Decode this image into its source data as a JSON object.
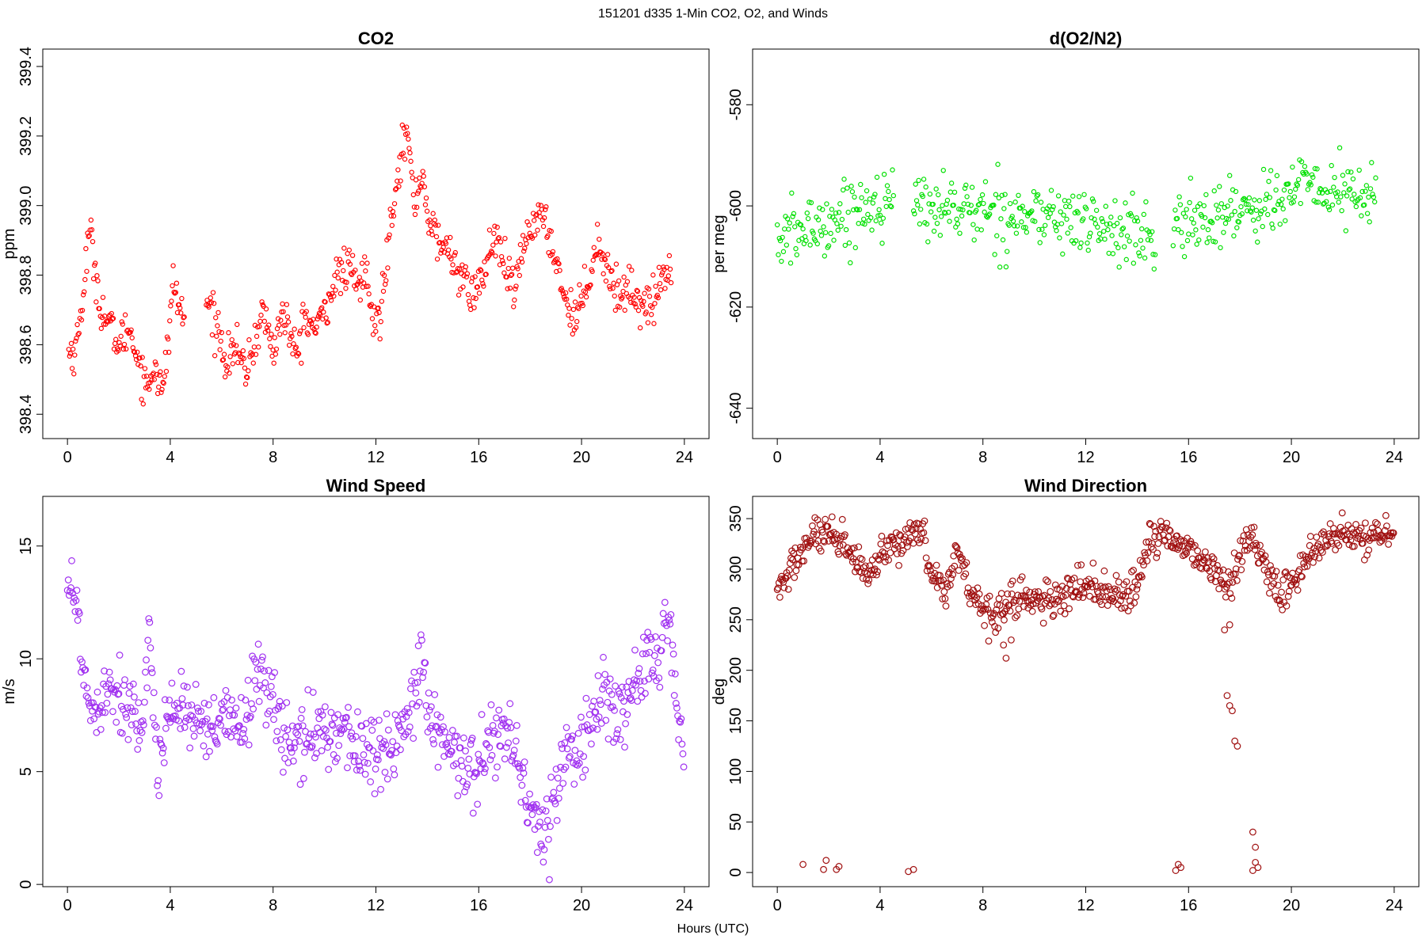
{
  "figure": {
    "title": "151201   d335   1-Min CO2, O2, and Winds",
    "xlabel": "Hours (UTC)"
  },
  "chart_data": [
    {
      "type": "scatter",
      "title": "CO2",
      "ylabel": "ppm",
      "xlim": [
        -0.96,
        24.96
      ],
      "ylim": [
        398.33,
        399.45
      ],
      "xticks": [
        0,
        4,
        8,
        12,
        16,
        20,
        24
      ],
      "yticks": [
        398.4,
        398.6,
        398.8,
        399.0,
        399.2,
        399.4
      ],
      "ytick_labels": [
        "398.4",
        "398.6",
        "398.8",
        "399.0",
        "399.2",
        "399.4"
      ],
      "color": "#ff0000",
      "marker_radius": 2.6,
      "x_step_hours": 0.0333,
      "x_ranges": [
        [
          0.05,
          4.55
        ],
        [
          5.4,
          23.5
        ]
      ],
      "keypoints": [
        [
          0.0,
          398.58
        ],
        [
          0.3,
          398.58
        ],
        [
          0.5,
          398.67
        ],
        [
          0.85,
          398.93
        ],
        [
          1.0,
          398.86
        ],
        [
          1.3,
          398.7
        ],
        [
          1.6,
          398.66
        ],
        [
          2.0,
          398.6
        ],
        [
          2.4,
          398.65
        ],
        [
          2.8,
          398.55
        ],
        [
          3.1,
          398.47
        ],
        [
          3.4,
          398.55
        ],
        [
          3.7,
          398.45
        ],
        [
          3.9,
          398.6
        ],
        [
          4.1,
          398.78
        ],
        [
          4.5,
          398.67
        ],
        [
          5.5,
          398.72
        ],
        [
          5.8,
          398.66
        ],
        [
          6.2,
          398.55
        ],
        [
          6.5,
          398.6
        ],
        [
          6.9,
          398.52
        ],
        [
          7.2,
          398.58
        ],
        [
          7.6,
          398.7
        ],
        [
          8.0,
          398.58
        ],
        [
          8.4,
          398.7
        ],
        [
          8.9,
          398.56
        ],
        [
          9.2,
          398.68
        ],
        [
          9.7,
          398.64
        ],
        [
          10.0,
          398.7
        ],
        [
          10.5,
          398.8
        ],
        [
          11.0,
          398.82
        ],
        [
          11.3,
          398.76
        ],
        [
          11.6,
          398.82
        ],
        [
          11.9,
          398.65
        ],
        [
          12.2,
          398.7
        ],
        [
          12.6,
          398.98
        ],
        [
          12.9,
          399.12
        ],
        [
          13.2,
          399.22
        ],
        [
          13.5,
          399.0
        ],
        [
          13.8,
          399.1
        ],
        [
          14.1,
          398.94
        ],
        [
          14.4,
          398.9
        ],
        [
          14.9,
          398.86
        ],
        [
          15.3,
          398.8
        ],
        [
          15.7,
          398.74
        ],
        [
          16.2,
          398.8
        ],
        [
          16.6,
          398.92
        ],
        [
          17.0,
          398.82
        ],
        [
          17.4,
          398.75
        ],
        [
          17.8,
          398.9
        ],
        [
          18.3,
          398.98
        ],
        [
          18.7,
          398.92
        ],
        [
          19.0,
          398.85
        ],
        [
          19.4,
          398.72
        ],
        [
          19.8,
          398.68
        ],
        [
          20.3,
          398.8
        ],
        [
          20.6,
          398.9
        ],
        [
          21.0,
          398.82
        ],
        [
          21.4,
          398.74
        ],
        [
          21.8,
          398.77
        ],
        [
          22.3,
          398.72
        ],
        [
          22.8,
          398.71
        ],
        [
          23.1,
          398.8
        ],
        [
          23.5,
          398.82
        ]
      ],
      "noise": 0.05
    },
    {
      "type": "scatter",
      "title": "d(O2/N2)",
      "ylabel": "per meg",
      "xlim": [
        -0.96,
        24.96
      ],
      "ylim": [
        -646,
        -569
      ],
      "xticks": [
        0,
        4,
        8,
        12,
        16,
        20,
        24
      ],
      "yticks": [
        -640,
        -620,
        -600,
        -580
      ],
      "ytick_labels": [
        "-640",
        "-620",
        "-600",
        "-580"
      ],
      "color": "#00e000",
      "marker_radius": 2.6,
      "x_step_hours": 0.04,
      "x_ranges": [
        [
          0.0,
          4.55
        ],
        [
          5.3,
          14.7
        ],
        [
          15.4,
          23.3
        ]
      ],
      "keypoints": [
        [
          0.0,
          -607
        ],
        [
          1.0,
          -605
        ],
        [
          2.0,
          -603
        ],
        [
          3.0,
          -601
        ],
        [
          4.0,
          -599
        ],
        [
          5.5,
          -600
        ],
        [
          6.5,
          -600
        ],
        [
          7.5,
          -601
        ],
        [
          8.5,
          -601
        ],
        [
          9.5,
          -602
        ],
        [
          10.5,
          -602
        ],
        [
          11.5,
          -603
        ],
        [
          12.5,
          -604
        ],
        [
          13.5,
          -605
        ],
        [
          14.5,
          -607
        ],
        [
          15.5,
          -604
        ],
        [
          16.5,
          -603
        ],
        [
          17.5,
          -601
        ],
        [
          18.5,
          -600
        ],
        [
          19.5,
          -599
        ],
        [
          20.5,
          -596
        ],
        [
          21.5,
          -597
        ],
        [
          22.5,
          -598
        ],
        [
          23.3,
          -598
        ]
      ],
      "noise": 5.5
    },
    {
      "type": "scatter",
      "title": "Wind Speed",
      "ylabel": "m/s",
      "xlim": [
        -0.96,
        24.96
      ],
      "ylim": [
        -0.1,
        17.2
      ],
      "xticks": [
        0,
        4,
        8,
        12,
        16,
        20,
        24
      ],
      "yticks": [
        0,
        5,
        10,
        15
      ],
      "ytick_labels": [
        "0",
        "5",
        "10",
        "15"
      ],
      "color": "#a030f0",
      "marker_radius": 3.8,
      "x_step_hours": 0.0333,
      "x_ranges": [
        [
          0.0,
          24.0
        ]
      ],
      "keypoints": [
        [
          0.0,
          14.0
        ],
        [
          0.3,
          12.5
        ],
        [
          0.7,
          9.0
        ],
        [
          1.0,
          7.5
        ],
        [
          1.5,
          9.0
        ],
        [
          2.0,
          8.5
        ],
        [
          2.5,
          7.8
        ],
        [
          3.0,
          6.5
        ],
        [
          3.2,
          11.5
        ],
        [
          3.5,
          5.5
        ],
        [
          4.0,
          7.8
        ],
        [
          4.5,
          8.0
        ],
        [
          5.0,
          7.0
        ],
        [
          5.5,
          6.5
        ],
        [
          6.0,
          7.2
        ],
        [
          6.5,
          7.0
        ],
        [
          7.0,
          7.5
        ],
        [
          7.5,
          9.5
        ],
        [
          8.0,
          8.5
        ],
        [
          8.3,
          6.5
        ],
        [
          9.0,
          6.2
        ],
        [
          9.5,
          6.5
        ],
        [
          10.0,
          7.0
        ],
        [
          10.5,
          6.8
        ],
        [
          11.0,
          6.5
        ],
        [
          11.5,
          6.0
        ],
        [
          12.0,
          5.5
        ],
        [
          12.5,
          6.0
        ],
        [
          13.0,
          6.8
        ],
        [
          13.5,
          7.8
        ],
        [
          13.8,
          10.5
        ],
        [
          14.0,
          7.5
        ],
        [
          14.5,
          6.5
        ],
        [
          15.0,
          5.5
        ],
        [
          15.5,
          5.2
        ],
        [
          16.0,
          5.5
        ],
        [
          16.5,
          6.5
        ],
        [
          17.0,
          7.0
        ],
        [
          17.5,
          5.5
        ],
        [
          18.0,
          3.5
        ],
        [
          18.5,
          2.0
        ],
        [
          19.0,
          4.0
        ],
        [
          19.5,
          6.5
        ],
        [
          20.0,
          6.0
        ],
        [
          20.5,
          7.5
        ],
        [
          21.0,
          8.5
        ],
        [
          21.5,
          7.5
        ],
        [
          22.0,
          8.5
        ],
        [
          22.5,
          9.8
        ],
        [
          23.0,
          9.5
        ],
        [
          23.3,
          12.5
        ],
        [
          23.6,
          9.0
        ],
        [
          24.0,
          5.0
        ]
      ],
      "noise": 1.4
    },
    {
      "type": "scatter",
      "title": "Wind Direction",
      "ylabel": "deg",
      "xlim": [
        -0.96,
        24.96
      ],
      "ylim": [
        -14,
        372
      ],
      "xticks": [
        0,
        4,
        8,
        12,
        16,
        20,
        24
      ],
      "yticks": [
        0,
        50,
        100,
        150,
        200,
        250,
        300,
        350
      ],
      "ytick_labels": [
        "0",
        "50",
        "100",
        "150",
        "200",
        "250",
        "300",
        "350"
      ],
      "color": "#a01010",
      "marker_radius": 3.8,
      "x_step_hours": 0.0333,
      "x_ranges": [
        [
          0.0,
          24.0
        ]
      ],
      "keypoints": [
        [
          0.0,
          275
        ],
        [
          0.5,
          300
        ],
        [
          1.0,
          320
        ],
        [
          1.5,
          335
        ],
        [
          2.0,
          330
        ],
        [
          2.5,
          325
        ],
        [
          3.0,
          310
        ],
        [
          3.5,
          290
        ],
        [
          4.0,
          310
        ],
        [
          4.5,
          320
        ],
        [
          5.0,
          330
        ],
        [
          5.5,
          345
        ],
        [
          6.0,
          300
        ],
        [
          6.5,
          275
        ],
        [
          7.0,
          320
        ],
        [
          7.5,
          280
        ],
        [
          8.0,
          260
        ],
        [
          8.5,
          258
        ],
        [
          9.0,
          265
        ],
        [
          9.5,
          275
        ],
        [
          10.0,
          270
        ],
        [
          10.5,
          265
        ],
        [
          11.0,
          270
        ],
        [
          11.5,
          280
        ],
        [
          12.0,
          285
        ],
        [
          12.5,
          282
        ],
        [
          13.0,
          275
        ],
        [
          13.5,
          270
        ],
        [
          14.0,
          280
        ],
        [
          14.5,
          330
        ],
        [
          15.0,
          335
        ],
        [
          15.5,
          330
        ],
        [
          16.0,
          320
        ],
        [
          16.5,
          310
        ],
        [
          17.0,
          300
        ],
        [
          17.5,
          280
        ],
        [
          18.0,
          310
        ],
        [
          18.5,
          340
        ],
        [
          19.0,
          300
        ],
        [
          19.5,
          275
        ],
        [
          20.0,
          285
        ],
        [
          20.5,
          305
        ],
        [
          21.0,
          320
        ],
        [
          21.5,
          330
        ],
        [
          22.0,
          335
        ],
        [
          22.5,
          330
        ],
        [
          23.0,
          332
        ],
        [
          23.5,
          335
        ],
        [
          24.0,
          330
        ]
      ],
      "noise": 15,
      "outliers": [
        [
          1.0,
          8
        ],
        [
          1.8,
          3
        ],
        [
          1.9,
          12
        ],
        [
          2.3,
          3
        ],
        [
          2.4,
          6
        ],
        [
          5.1,
          1
        ],
        [
          5.3,
          3
        ],
        [
          8.8,
          225
        ],
        [
          8.9,
          212
        ],
        [
          9.1,
          230
        ],
        [
          15.5,
          2
        ],
        [
          15.6,
          8
        ],
        [
          15.7,
          5
        ],
        [
          17.5,
          175
        ],
        [
          17.6,
          165
        ],
        [
          17.7,
          160
        ],
        [
          17.8,
          130
        ],
        [
          17.9,
          125
        ],
        [
          17.4,
          240
        ],
        [
          17.6,
          245
        ],
        [
          18.5,
          2
        ],
        [
          18.6,
          10
        ],
        [
          18.7,
          5
        ],
        [
          18.5,
          40
        ],
        [
          18.6,
          25
        ]
      ]
    }
  ]
}
